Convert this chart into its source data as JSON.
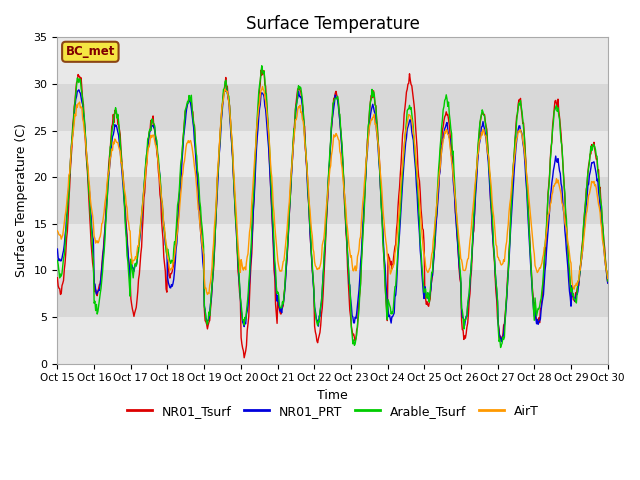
{
  "title": "Surface Temperature",
  "ylabel": "Surface Temperature (C)",
  "xlabel": "Time",
  "ylim": [
    0,
    35
  ],
  "yticks": [
    0,
    5,
    10,
    15,
    20,
    25,
    30,
    35
  ],
  "xtick_labels": [
    "Oct 15",
    "Oct 16",
    "Oct 17",
    "Oct 18",
    "Oct 19",
    "Oct 20",
    "Oct 21",
    "Oct 22",
    "Oct 23",
    "Oct 24",
    "Oct 25",
    "Oct 26",
    "Oct 27",
    "Oct 28",
    "Oct 29",
    "Oct 30"
  ],
  "legend_labels": [
    "NR01_Tsurf",
    "NR01_PRT",
    "Arable_Tsurf",
    "AirT"
  ],
  "line_colors": [
    "#dd0000",
    "#0000dd",
    "#00cc00",
    "#ff9900"
  ],
  "annotation_text": "BC_met",
  "band_colors": [
    "#e8e8e8",
    "#d8d8d8"
  ],
  "title_fontsize": 12,
  "axis_fontsize": 9,
  "legend_fontsize": 9,
  "n_days": 15,
  "pts_per_day": 48,
  "daily_peaks_nr01": [
    31.0,
    27.0,
    26.0,
    28.5,
    30.0,
    31.5,
    29.5,
    29.0,
    29.0,
    30.5,
    27.0,
    27.0,
    28.0,
    28.0,
    23.5
  ],
  "daily_peaks_prt": [
    29.5,
    25.5,
    25.5,
    28.0,
    29.5,
    29.0,
    29.0,
    28.5,
    27.5,
    26.0,
    25.5,
    25.5,
    25.5,
    22.0,
    21.5
  ],
  "daily_peaks_arable": [
    30.5,
    27.0,
    26.0,
    28.5,
    30.0,
    31.5,
    29.5,
    29.0,
    29.0,
    27.5,
    28.5,
    27.0,
    28.0,
    27.5,
    23.5
  ],
  "daily_peaks_airt": [
    28.0,
    24.0,
    24.5,
    24.0,
    29.5,
    29.5,
    27.5,
    24.5,
    26.5,
    26.5,
    25.0,
    25.0,
    25.0,
    19.5,
    19.5
  ],
  "daily_mins_nr01": [
    7.5,
    7.5,
    5.5,
    9.5,
    4.0,
    1.0,
    5.5,
    2.5,
    2.5,
    10.5,
    6.5,
    3.0,
    2.5,
    4.5,
    7.0
  ],
  "daily_mins_prt": [
    11.0,
    7.5,
    10.0,
    8.0,
    4.5,
    4.0,
    5.5,
    4.5,
    4.5,
    4.5,
    7.0,
    4.5,
    2.5,
    4.5,
    7.0
  ],
  "daily_mins_arable": [
    9.5,
    5.5,
    10.0,
    11.0,
    4.5,
    4.5,
    6.0,
    4.5,
    2.0,
    5.5,
    7.0,
    4.5,
    2.0,
    5.5,
    7.0
  ],
  "daily_mins_airt": [
    13.5,
    13.0,
    11.0,
    10.0,
    7.5,
    10.0,
    10.0,
    10.0,
    10.0,
    10.0,
    10.0,
    10.0,
    10.5,
    10.0,
    8.0
  ],
  "peak_hour": 14,
  "min_hour": 5
}
